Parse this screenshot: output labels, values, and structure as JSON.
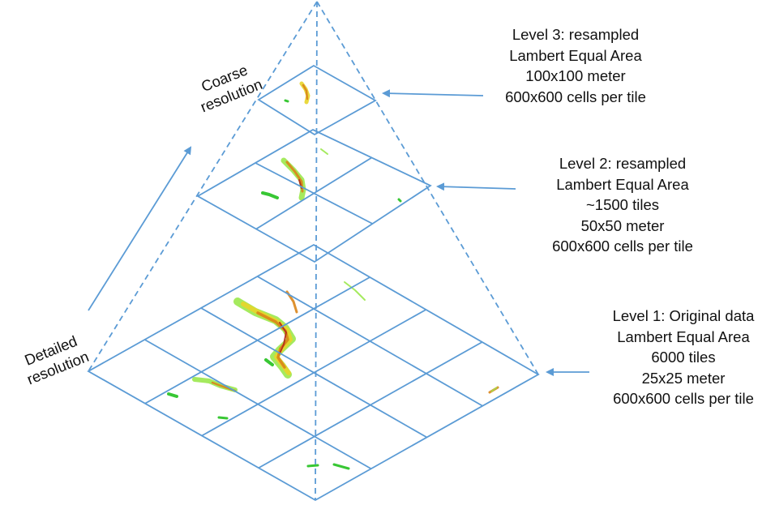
{
  "colors": {
    "line": "#5b9bd5",
    "data_green": "#22c11e",
    "data_light_green": "#9be84c",
    "data_yellow": "#e8d52a",
    "data_orange": "#d9851a",
    "data_red": "#b22a1a",
    "text": "#111111"
  },
  "resolution_labels": {
    "coarse": [
      "Coarse",
      "resolution"
    ],
    "detailed": [
      "Detailed",
      "resolution"
    ]
  },
  "levels": [
    {
      "id": "level-3",
      "lines": [
        "Level 3: resampled",
        "Lambert Equal Area",
        "100x100 meter",
        "600x600 cells per tile"
      ]
    },
    {
      "id": "level-2",
      "lines": [
        "Level 2: resampled",
        "Lambert Equal Area",
        "~1500 tiles",
        "50x50 meter",
        "600x600 cells per tile"
      ]
    },
    {
      "id": "level-1",
      "lines": [
        "Level 1: Original data",
        "Lambert Equal Area",
        "6000 tiles",
        "25x25 meter",
        "600x600 cells per tile"
      ]
    }
  ]
}
